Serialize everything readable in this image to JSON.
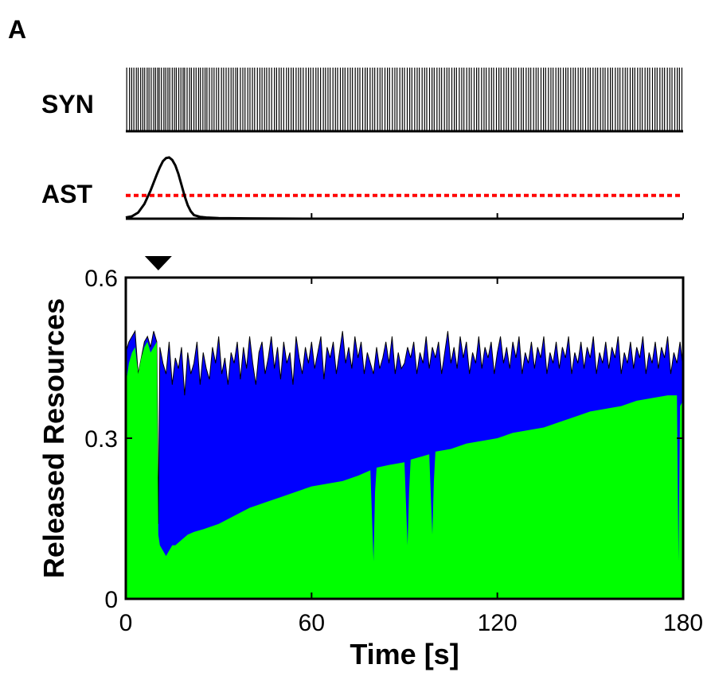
{
  "panel_label": "A",
  "chart_data": [
    {
      "type": "raster",
      "ylabel": "SYN",
      "xlim": [
        0,
        180
      ],
      "spike_times": [
        0.3,
        1.2,
        1.9,
        2.6,
        3.4,
        4.0,
        4.8,
        5.5,
        6.1,
        6.9,
        7.5,
        8.2,
        9.0,
        9.6,
        10.3,
        10.8,
        11.5,
        12.3,
        12.9,
        13.6,
        14.2,
        15.0,
        15.7,
        16.3,
        17.1,
        17.8,
        18.5,
        19.0,
        19.8,
        20.6,
        21.2,
        22.0,
        22.7,
        23.5,
        24.1,
        24.9,
        25.6,
        26.2,
        27.0,
        27.8,
        28.5,
        29.3,
        30.0,
        30.9,
        31.6,
        32.4,
        33.2,
        34.0,
        34.7,
        35.5,
        36.1,
        37.0,
        37.8,
        38.5,
        39.4,
        40.1,
        40.9,
        41.6,
        42.5,
        43.3,
        44.0,
        44.8,
        45.5,
        46.3,
        47.1,
        48.0,
        48.7,
        49.5,
        50.2,
        51.0,
        51.9,
        52.6,
        53.4,
        54.1,
        55.0,
        55.8,
        56.5,
        57.3,
        58.2,
        59.0,
        59.7,
        60.5,
        61.4,
        62.1,
        62.9,
        63.8,
        64.5,
        65.3,
        66.0,
        66.9,
        67.7,
        68.4,
        69.3,
        70.1,
        70.8,
        71.7,
        72.5,
        73.2,
        74.1,
        74.9,
        75.6,
        76.5,
        77.3,
        78.0,
        78.9,
        79.7,
        80.4,
        81.3,
        82.1,
        82.8,
        83.7,
        84.5,
        85.2,
        86.1,
        86.9,
        87.6,
        88.5,
        89.3,
        90.0,
        90.9,
        91.7,
        92.4,
        93.3,
        94.1,
        94.8,
        95.7,
        96.5,
        97.2,
        98.1,
        98.9,
        99.6,
        100.5,
        101.3,
        102.0,
        102.9,
        103.7,
        104.4,
        105.3,
        106.1,
        106.8,
        107.7,
        108.5,
        109.2,
        110.1,
        110.9,
        111.6,
        112.5,
        113.3,
        114.0,
        114.9,
        115.7,
        116.4,
        117.3,
        118.1,
        118.8,
        119.7,
        120.5,
        121.2,
        122.1,
        122.9,
        123.6,
        124.5,
        125.3,
        126.0,
        126.9,
        127.7,
        128.4,
        129.3,
        130.1,
        130.8,
        131.7,
        132.5,
        133.2,
        134.1,
        134.9,
        135.6,
        136.5,
        137.3,
        138.0,
        138.9,
        139.7,
        140.4,
        141.3,
        142.1,
        142.8,
        143.7,
        144.5,
        145.2,
        146.1,
        146.9,
        147.6,
        148.5,
        149.3,
        150.0,
        150.9,
        151.7,
        152.4,
        153.3,
        154.1,
        154.8,
        155.7,
        156.5,
        157.2,
        158.1,
        158.9,
        159.6,
        160.5,
        161.3,
        162.0,
        162.9,
        163.7,
        164.4,
        165.3,
        166.1,
        166.8,
        167.7,
        168.5,
        169.2,
        170.1,
        170.9,
        171.6,
        172.5,
        173.3,
        174.0,
        174.9,
        175.7,
        176.4,
        177.3,
        178.1,
        178.8,
        179.6
      ]
    },
    {
      "type": "line",
      "ylabel": "AST",
      "xlim": [
        0,
        180
      ],
      "x": [
        0,
        2,
        4,
        6,
        8,
        10,
        11,
        12,
        13,
        14,
        15,
        16,
        17,
        18,
        19,
        20,
        21,
        22,
        24,
        26,
        30,
        40,
        60,
        90,
        120,
        150,
        180
      ],
      "y": [
        0.02,
        0.04,
        0.1,
        0.24,
        0.46,
        0.72,
        0.84,
        0.94,
        0.99,
        1.0,
        0.96,
        0.87,
        0.73,
        0.55,
        0.37,
        0.22,
        0.12,
        0.06,
        0.03,
        0.02,
        0.01,
        0.005,
        0.0,
        0.0,
        0.0,
        0.0,
        0.0
      ],
      "threshold": 0.38,
      "threshold_color": "#ff0000",
      "line_color": "#000000"
    },
    {
      "type": "area",
      "xlabel": "Time [s]",
      "ylabel": "Released Resources",
      "xlim": [
        0,
        180
      ],
      "ylim": [
        0,
        0.6
      ],
      "xticks": [
        0,
        60,
        120,
        180
      ],
      "yticks": [
        0,
        0.3,
        0.6
      ],
      "xtick_labels": [
        "0",
        "60",
        "120",
        "180"
      ],
      "ytick_labels": [
        "0",
        "0.3",
        "0.6"
      ],
      "marker_x": 10.5,
      "series": [
        {
          "color": "#00ff00",
          "x": [
            0,
            1,
            2,
            3,
            4,
            5,
            6,
            7,
            8,
            9,
            10,
            10.5,
            11,
            12,
            13,
            14,
            15,
            16,
            18,
            20,
            22,
            25,
            30,
            35,
            40,
            45,
            50,
            55,
            60,
            65,
            70,
            75,
            79,
            80,
            80.5,
            81,
            85,
            90,
            91,
            91.5,
            92,
            95,
            98,
            99,
            99.5,
            100,
            105,
            110,
            115,
            120,
            125,
            130,
            135,
            140,
            145,
            150,
            155,
            160,
            165,
            170,
            175,
            178,
            178.5,
            179,
            180
          ],
          "y": [
            0.4,
            0.44,
            0.46,
            0.47,
            0.42,
            0.45,
            0.47,
            0.48,
            0.46,
            0.47,
            0.48,
            0.12,
            0.1,
            0.09,
            0.08,
            0.09,
            0.1,
            0.1,
            0.11,
            0.12,
            0.125,
            0.13,
            0.14,
            0.155,
            0.17,
            0.18,
            0.19,
            0.2,
            0.21,
            0.215,
            0.22,
            0.23,
            0.24,
            0.07,
            0.2,
            0.245,
            0.25,
            0.255,
            0.1,
            0.2,
            0.26,
            0.265,
            0.27,
            0.12,
            0.22,
            0.275,
            0.28,
            0.29,
            0.295,
            0.3,
            0.31,
            0.315,
            0.32,
            0.33,
            0.34,
            0.35,
            0.355,
            0.36,
            0.37,
            0.375,
            0.38,
            0.38,
            0.07,
            0.36,
            0.37
          ]
        },
        {
          "color": "#0000ff",
          "x": [
            0,
            1,
            2,
            3,
            4,
            5,
            6,
            7,
            8,
            9,
            10,
            10.5,
            11,
            12,
            13,
            14,
            15,
            16,
            17,
            18,
            19,
            20,
            21,
            22,
            23,
            24,
            25,
            26,
            27,
            28,
            29,
            30,
            31,
            32,
            33,
            34,
            35,
            36,
            37,
            38,
            39,
            40,
            41,
            42,
            43,
            44,
            45,
            46,
            47,
            48,
            49,
            50,
            51,
            52,
            53,
            54,
            55,
            56,
            57,
            58,
            59,
            60,
            61,
            62,
            63,
            64,
            65,
            66,
            67,
            68,
            69,
            70,
            71,
            72,
            73,
            74,
            75,
            76,
            77,
            78,
            79,
            80,
            81,
            82,
            83,
            84,
            85,
            86,
            87,
            88,
            89,
            90,
            91,
            92,
            93,
            94,
            95,
            96,
            97,
            98,
            99,
            100,
            101,
            102,
            103,
            104,
            105,
            106,
            107,
            108,
            109,
            110,
            111,
            112,
            113,
            114,
            115,
            116,
            117,
            118,
            119,
            120,
            121,
            122,
            123,
            124,
            125,
            126,
            127,
            128,
            129,
            130,
            131,
            132,
            133,
            134,
            135,
            136,
            137,
            138,
            139,
            140,
            141,
            142,
            143,
            144,
            145,
            146,
            147,
            148,
            149,
            150,
            151,
            152,
            153,
            154,
            155,
            156,
            157,
            158,
            159,
            160,
            161,
            162,
            163,
            164,
            165,
            166,
            167,
            168,
            169,
            170,
            171,
            172,
            173,
            174,
            175,
            176,
            177,
            178,
            179,
            180
          ],
          "y": [
            0.46,
            0.48,
            0.49,
            0.5,
            0.42,
            0.45,
            0.48,
            0.49,
            0.47,
            0.5,
            0.48,
            0.14,
            0.47,
            0.44,
            0.42,
            0.48,
            0.4,
            0.45,
            0.43,
            0.47,
            0.38,
            0.46,
            0.42,
            0.44,
            0.48,
            0.4,
            0.46,
            0.43,
            0.41,
            0.47,
            0.44,
            0.49,
            0.42,
            0.45,
            0.4,
            0.46,
            0.44,
            0.48,
            0.41,
            0.47,
            0.43,
            0.49,
            0.44,
            0.4,
            0.46,
            0.48,
            0.42,
            0.45,
            0.49,
            0.43,
            0.47,
            0.41,
            0.48,
            0.44,
            0.46,
            0.4,
            0.49,
            0.45,
            0.42,
            0.47,
            0.44,
            0.48,
            0.43,
            0.46,
            0.49,
            0.41,
            0.47,
            0.45,
            0.48,
            0.42,
            0.46,
            0.5,
            0.44,
            0.47,
            0.43,
            0.49,
            0.45,
            0.48,
            0.42,
            0.46,
            0.44,
            0.42,
            0.47,
            0.43,
            0.45,
            0.48,
            0.44,
            0.49,
            0.42,
            0.46,
            0.43,
            0.44,
            0.47,
            0.45,
            0.48,
            0.42,
            0.46,
            0.44,
            0.49,
            0.43,
            0.47,
            0.45,
            0.48,
            0.42,
            0.46,
            0.5,
            0.44,
            0.47,
            0.43,
            0.49,
            0.45,
            0.48,
            0.42,
            0.46,
            0.44,
            0.49,
            0.43,
            0.47,
            0.45,
            0.48,
            0.42,
            0.46,
            0.49,
            0.44,
            0.47,
            0.43,
            0.48,
            0.45,
            0.49,
            0.42,
            0.46,
            0.44,
            0.48,
            0.43,
            0.47,
            0.45,
            0.49,
            0.42,
            0.46,
            0.44,
            0.48,
            0.43,
            0.47,
            0.45,
            0.49,
            0.42,
            0.46,
            0.44,
            0.48,
            0.43,
            0.47,
            0.45,
            0.49,
            0.42,
            0.46,
            0.44,
            0.48,
            0.43,
            0.47,
            0.45,
            0.49,
            0.42,
            0.46,
            0.44,
            0.48,
            0.43,
            0.47,
            0.45,
            0.49,
            0.42,
            0.46,
            0.44,
            0.48,
            0.43,
            0.47,
            0.45,
            0.49,
            0.42,
            0.46,
            0.44,
            0.48,
            0.43
          ]
        }
      ]
    }
  ]
}
